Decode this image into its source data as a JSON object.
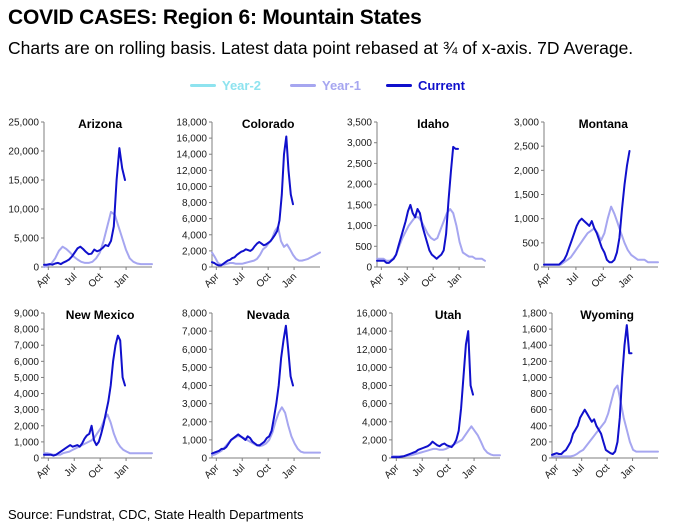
{
  "header": {
    "title": "COVID CASES: Region 6: Mountain States",
    "subtitle": "Charts are on rolling basis. Latest data point rebased at ¾ of x-axis. 7D Average."
  },
  "legend": {
    "items": [
      {
        "label": "Year-2",
        "color": "#8ee3ef"
      },
      {
        "label": "Year-1",
        "color": "#a6a6f0"
      },
      {
        "label": "Current",
        "color": "#1010cc"
      }
    ]
  },
  "footer": {
    "source": "Source: Fundstrat, CDC, State Health Departments"
  },
  "colors": {
    "year2": "#8ee3ef",
    "year1": "#a6a6f0",
    "current": "#1010cc",
    "axis": "#7f7f7f",
    "text_label": "#1a1a1a"
  },
  "chart_data": [
    {
      "type": "line",
      "title": "Arizona",
      "ylim": [
        0,
        25000
      ],
      "yticks": [
        "0",
        "5,000",
        "10,000",
        "15,000",
        "20,000",
        "25,000"
      ],
      "xticks": [
        "Apr",
        "Jul",
        "Oct",
        "Jan"
      ],
      "series": [
        {
          "name": "Year-1",
          "values": [
            0,
            200,
            600,
            1500,
            2800,
            3500,
            3100,
            2500,
            1800,
            1300,
            900,
            700,
            700,
            900,
            1500,
            2500,
            4500,
            7000,
            9500,
            9000,
            7000,
            5000,
            3000,
            1500,
            900,
            600,
            500,
            500,
            500,
            500
          ]
        },
        {
          "name": "Current",
          "values": [
            400,
            400,
            500,
            400,
            600,
            700,
            500,
            800,
            1000,
            1300,
            1800,
            2500,
            3200,
            3500,
            3100,
            2600,
            2200,
            2300,
            3000,
            2700,
            2900,
            3300,
            3800,
            3600,
            4500,
            7000,
            15000,
            20500,
            17000,
            15000
          ]
        }
      ]
    },
    {
      "type": "line",
      "title": "Colorado",
      "ylim": [
        0,
        18000
      ],
      "yticks": [
        "0",
        "2,000",
        "4,000",
        "6,000",
        "8,000",
        "10,000",
        "12,000",
        "14,000",
        "16,000",
        "18,000"
      ],
      "xticks": [
        "Apr",
        "Jul",
        "Oct",
        "Jan"
      ],
      "series": [
        {
          "name": "Year-1",
          "values": [
            1800,
            1200,
            500,
            300,
            300,
            400,
            500,
            500,
            400,
            400,
            400,
            500,
            600,
            700,
            800,
            1000,
            1500,
            2200,
            2500,
            3000,
            3500,
            4500,
            5000,
            3200,
            2500,
            2800,
            2200,
            1500,
            1000,
            800,
            800,
            900,
            1000,
            1200,
            1400,
            1600,
            1800
          ]
        },
        {
          "name": "Current",
          "values": [
            600,
            500,
            300,
            200,
            200,
            400,
            600,
            800,
            900,
            1100,
            1200,
            1500,
            1700,
            1900,
            2000,
            2200,
            2100,
            2000,
            2200,
            2600,
            2900,
            3100,
            2900,
            2700,
            2800,
            3000,
            3200,
            3600,
            4000,
            4500,
            5800,
            9000,
            14000,
            16200,
            12000,
            9000,
            7800
          ]
        }
      ]
    },
    {
      "type": "line",
      "title": "Idaho",
      "ylim": [
        0,
        3500
      ],
      "yticks": [
        "0",
        "500",
        "1,000",
        "1,500",
        "2,000",
        "2,500",
        "3,000",
        "3,500"
      ],
      "xticks": [
        "Apr",
        "Jul",
        "Oct",
        "Jan"
      ],
      "series": [
        {
          "name": "Year-1",
          "values": [
            200,
            200,
            200,
            150,
            150,
            200,
            300,
            500,
            700,
            850,
            1000,
            1100,
            1200,
            1200,
            1100,
            950,
            800,
            700,
            650,
            700,
            900,
            1100,
            1300,
            1400,
            1300,
            1000,
            600,
            350,
            300,
            250,
            250,
            200,
            200,
            200,
            150
          ]
        },
        {
          "name": "Current",
          "values": [
            150,
            150,
            150,
            150,
            100,
            100,
            150,
            200,
            300,
            500,
            700,
            900,
            1100,
            1350,
            1500,
            1300,
            1200,
            1400,
            1300,
            1000,
            800,
            600,
            400,
            300,
            250,
            200,
            250,
            300,
            400,
            800,
            1600,
            2300,
            2900,
            2850,
            2850
          ]
        }
      ]
    },
    {
      "type": "line",
      "title": "Montana",
      "ylim": [
        0,
        3000
      ],
      "yticks": [
        "0",
        "500",
        "1,000",
        "1,500",
        "2,000",
        "2,500",
        "3,000"
      ],
      "xticks": [
        "Apr",
        "Jul",
        "Oct",
        "Jan"
      ],
      "series": [
        {
          "name": "Year-1",
          "values": [
            50,
            50,
            50,
            50,
            50,
            50,
            100,
            150,
            200,
            300,
            400,
            500,
            600,
            700,
            750,
            800,
            700,
            550,
            700,
            1000,
            1250,
            1100,
            900,
            700,
            500,
            350,
            250,
            200,
            150,
            150,
            150,
            100,
            100,
            100,
            100
          ]
        },
        {
          "name": "Current",
          "values": [
            50,
            50,
            50,
            50,
            50,
            50,
            50,
            100,
            150,
            250,
            400,
            550,
            700,
            850,
            950,
            1000,
            950,
            900,
            850,
            950,
            800,
            700,
            550,
            400,
            300,
            150,
            100,
            100,
            150,
            300,
            600,
            1200,
            1700,
            2100,
            2400
          ]
        }
      ]
    },
    {
      "type": "line",
      "title": "New Mexico",
      "ylim": [
        0,
        9000
      ],
      "yticks": [
        "0",
        "1,000",
        "2,000",
        "3,000",
        "4,000",
        "5,000",
        "6,000",
        "7,000",
        "8,000",
        "9,000"
      ],
      "xticks": [
        "Apr",
        "Jul",
        "Oct",
        "Jan"
      ],
      "series": [
        {
          "name": "Year-1",
          "values": [
            300,
            300,
            250,
            200,
            200,
            200,
            300,
            350,
            400,
            500,
            600,
            700,
            800,
            900,
            1000,
            1100,
            1300,
            1600,
            1900,
            2400,
            2700,
            2200,
            1500,
            1000,
            700,
            500,
            400,
            300,
            300,
            300,
            300,
            300,
            300,
            300,
            300
          ]
        },
        {
          "name": "Current",
          "values": [
            200,
            200,
            200,
            200,
            150,
            200,
            300,
            400,
            500,
            600,
            700,
            800,
            700,
            750,
            800,
            700,
            900,
            1200,
            1400,
            1500,
            2000,
            1100,
            800,
            1000,
            1500,
            2100,
            2800,
            3500,
            4500,
            6000,
            7000,
            7600,
            7300,
            5000,
            4500
          ]
        }
      ]
    },
    {
      "type": "line",
      "title": "Nevada",
      "ylim": [
        0,
        8000
      ],
      "yticks": [
        "0",
        "1,000",
        "2,000",
        "3,000",
        "4,000",
        "5,000",
        "6,000",
        "7,000",
        "8,000"
      ],
      "xticks": [
        "Apr",
        "Jul",
        "Oct",
        "Jan"
      ],
      "series": [
        {
          "name": "Year-1",
          "values": [
            150,
            200,
            300,
            400,
            600,
            800,
            1000,
            1100,
            1200,
            1200,
            1100,
            1000,
            900,
            800,
            700,
            650,
            700,
            800,
            1000,
            1400,
            2000,
            2500,
            2800,
            2500,
            1800,
            1200,
            800,
            500,
            350,
            300,
            300,
            300,
            300,
            300,
            300
          ]
        },
        {
          "name": "Current",
          "values": [
            250,
            300,
            350,
            400,
            500,
            500,
            600,
            800,
            1000,
            1100,
            1200,
            1300,
            1200,
            1100,
            1000,
            1200,
            1100,
            900,
            800,
            700,
            700,
            800,
            900,
            1100,
            1200,
            1500,
            2200,
            3000,
            4000,
            5500,
            6500,
            7300,
            6000,
            4500,
            4000
          ]
        }
      ]
    },
    {
      "type": "line",
      "title": "Utah",
      "ylim": [
        0,
        16000
      ],
      "yticks": [
        "0",
        "2,000",
        "4,000",
        "6,000",
        "8,000",
        "10,000",
        "12,000",
        "14,000",
        "16,000"
      ],
      "xticks": [
        "Apr",
        "Jul",
        "Oct",
        "Jan"
      ],
      "series": [
        {
          "name": "Year-1",
          "values": [
            200,
            200,
            200,
            200,
            200,
            250,
            300,
            400,
            500,
            600,
            700,
            800,
            900,
            1000,
            1000,
            900,
            900,
            1000,
            1200,
            1400,
            1600,
            1800,
            2000,
            2500,
            3000,
            3500,
            3000,
            2500,
            1800,
            1000,
            600,
            400,
            300,
            300,
            300
          ]
        },
        {
          "name": "Current",
          "values": [
            100,
            100,
            100,
            100,
            150,
            200,
            300,
            400,
            500,
            600,
            700,
            900,
            1000,
            1100,
            1200,
            1300,
            1500,
            1800,
            1600,
            1400,
            1300,
            1500,
            1600,
            1400,
            1300,
            1200,
            1500,
            2000,
            3000,
            5500,
            9000,
            12500,
            14000,
            8000,
            7000
          ]
        }
      ]
    },
    {
      "type": "line",
      "title": "Wyoming",
      "ylim": [
        0,
        1800
      ],
      "yticks": [
        "0",
        "200",
        "400",
        "600",
        "800",
        "1,000",
        "1,200",
        "1,400",
        "1,600",
        "1,800"
      ],
      "xticks": [
        "Apr",
        "Jul",
        "Oct",
        "Jan"
      ],
      "series": [
        {
          "name": "Year-1",
          "values": [
            20,
            20,
            20,
            20,
            20,
            20,
            20,
            30,
            50,
            80,
            100,
            150,
            200,
            250,
            300,
            350,
            400,
            450,
            550,
            700,
            850,
            900,
            700,
            500,
            350,
            200,
            100,
            80,
            80,
            80,
            80,
            80,
            80,
            80,
            80
          ]
        },
        {
          "name": "Current",
          "values": [
            40,
            50,
            60,
            50,
            50,
            80,
            100,
            150,
            200,
            300,
            350,
            400,
            500,
            550,
            600,
            550,
            500,
            450,
            480,
            400,
            350,
            300,
            200,
            100,
            80,
            60,
            50,
            80,
            200,
            500,
            1000,
            1400,
            1650,
            1300,
            1300
          ]
        }
      ]
    }
  ]
}
